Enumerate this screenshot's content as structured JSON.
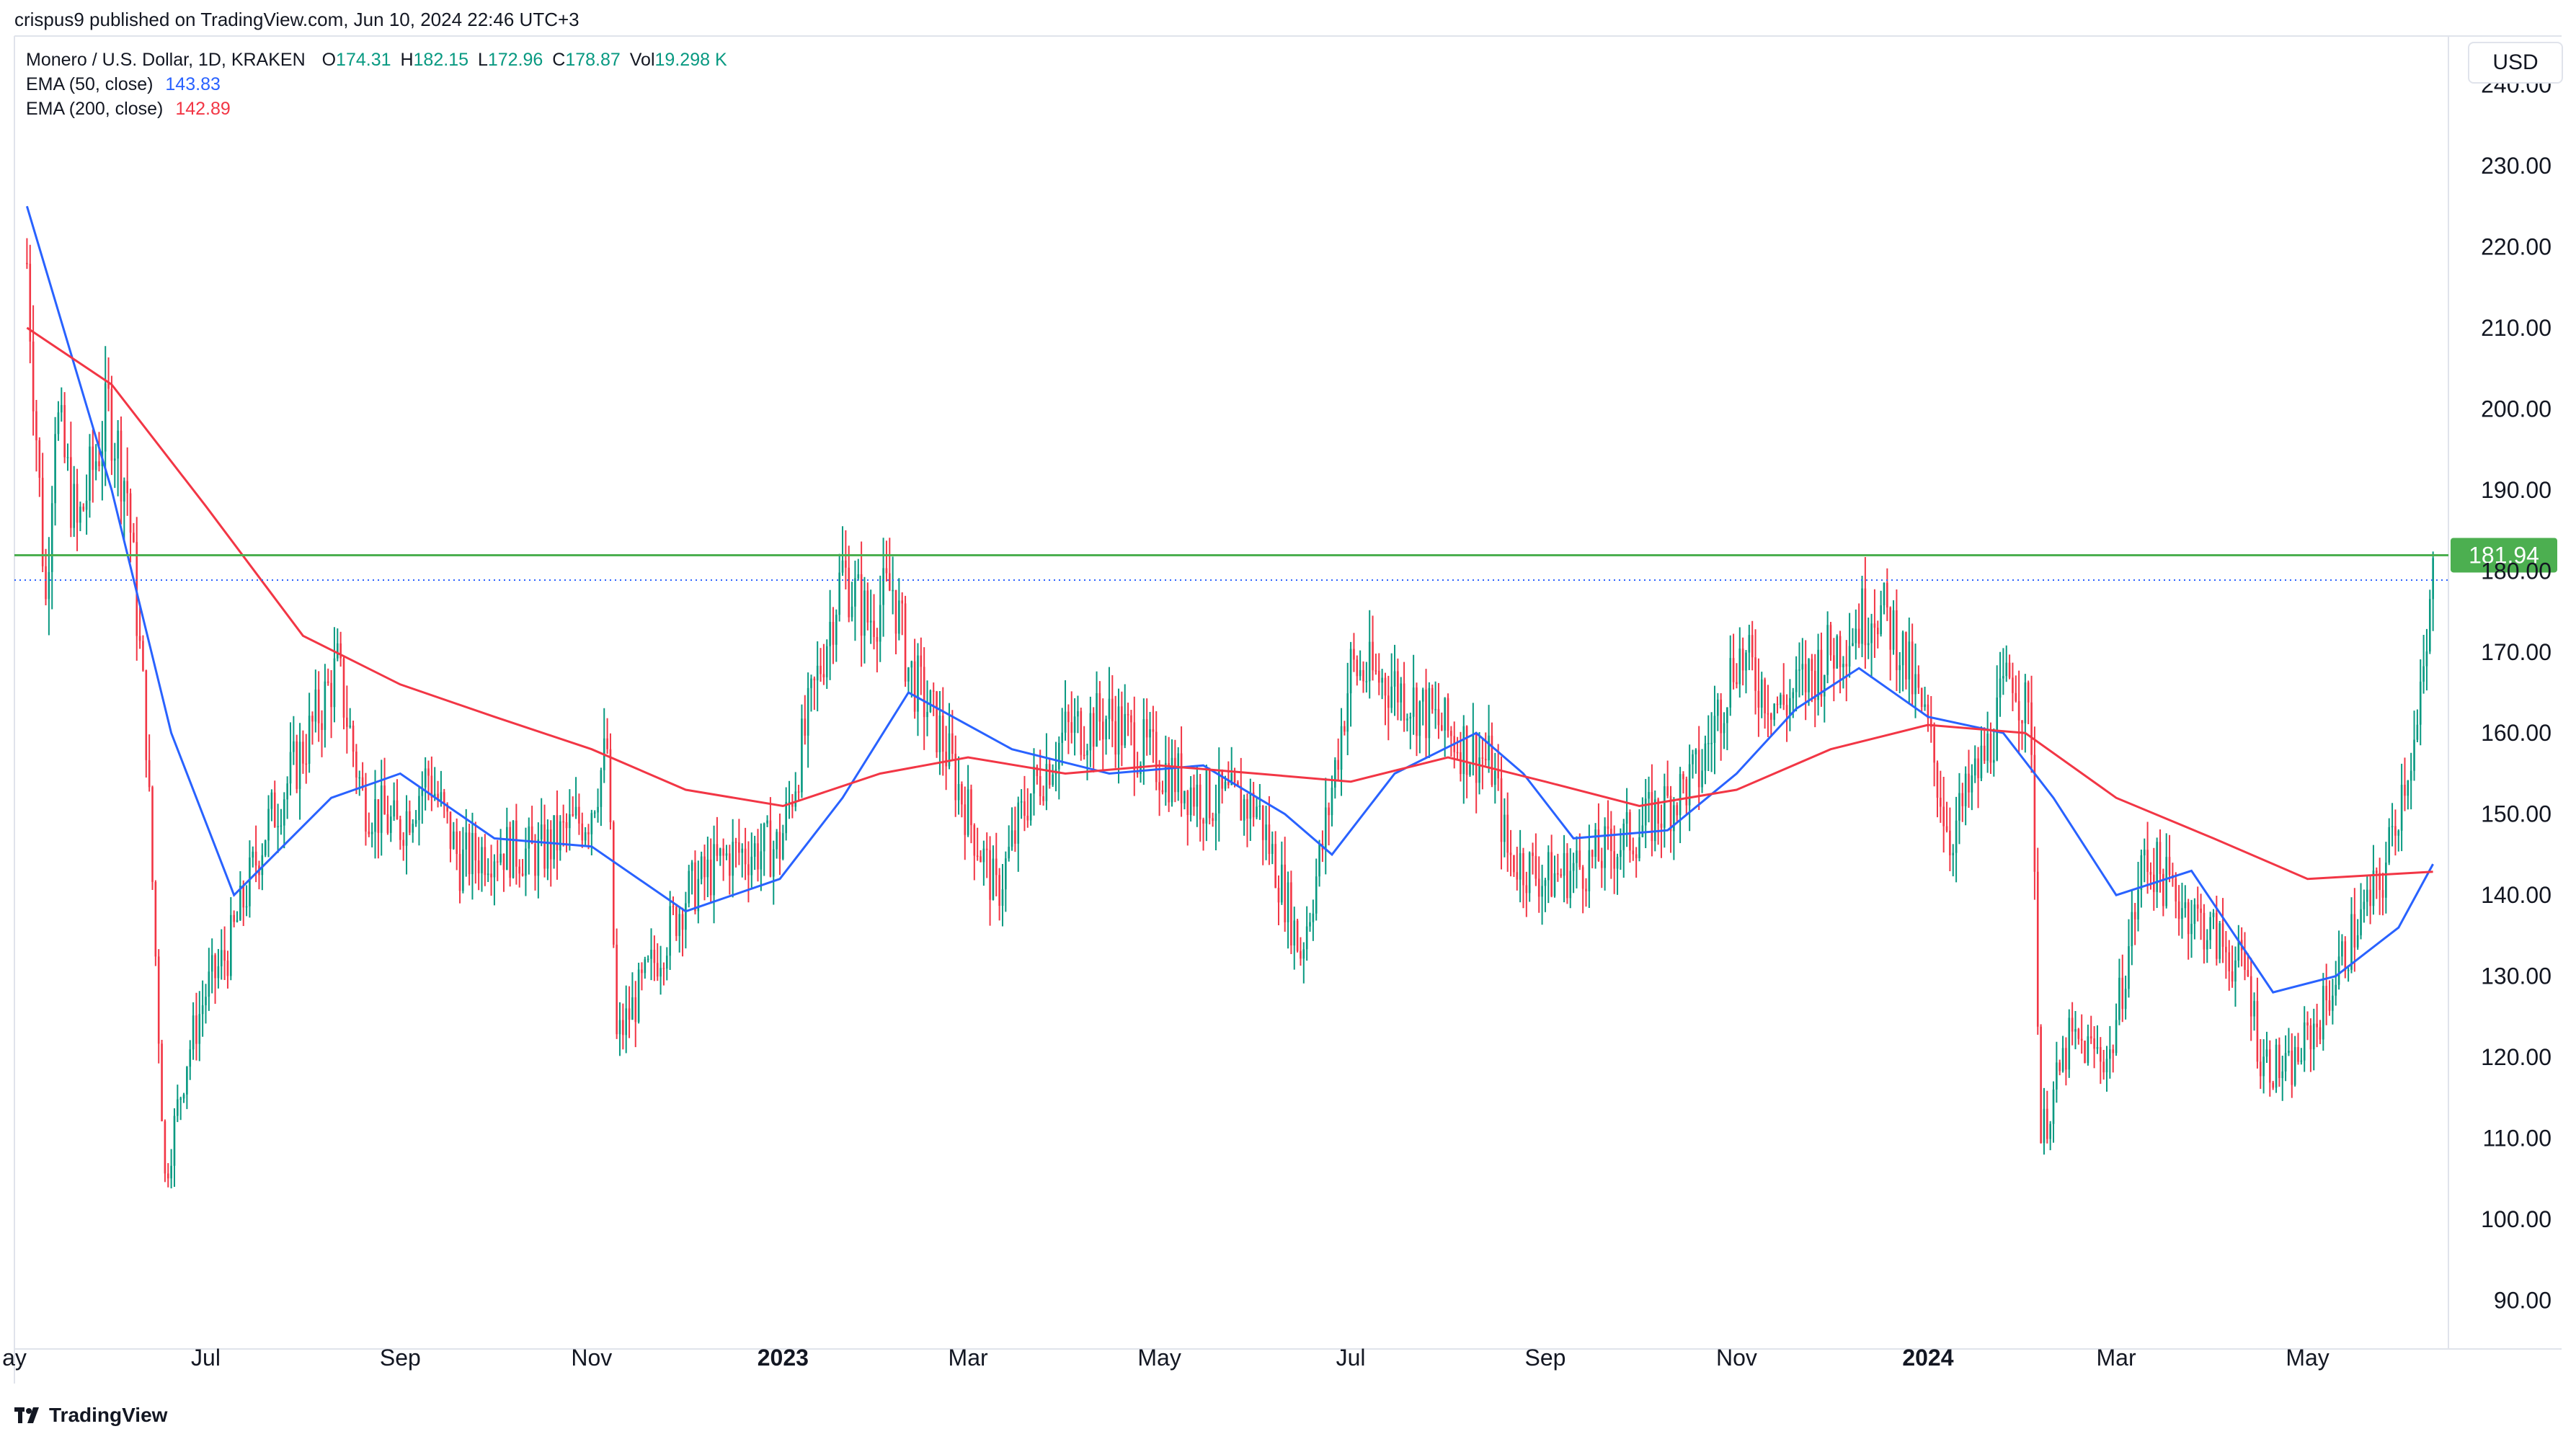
{
  "header": {
    "published_line": "crispus9 published on TradingView.com, Jun 10, 2024 22:46 UTC+3"
  },
  "legend": {
    "symbol": "Monero / U.S. Dollar, 1D, KRAKEN",
    "open_label": "O",
    "open": "174.31",
    "high_label": "H",
    "high": "182.15",
    "low_label": "L",
    "low": "172.96",
    "close_label": "C",
    "close": "178.87",
    "vol_label": "Vol",
    "vol": "19.298 K",
    "ema50_label": "EMA (50, close)",
    "ema50_value": "143.83",
    "ema200_label": "EMA (200, close)",
    "ema200_value": "142.89"
  },
  "currency_button": "USD",
  "footer": {
    "brand": "TradingView"
  },
  "colors": {
    "up": "#089981",
    "down": "#f23645",
    "ema50": "#2962ff",
    "ema200": "#f23645",
    "hline": "#4caf50",
    "dotted": "#2962ff",
    "price_tag_bg": "#4caf50"
  },
  "chart_data": {
    "type": "candlestick",
    "title": "Monero / U.S. Dollar, 1D, KRAKEN",
    "ylim": [
      84,
      246
    ],
    "y_ticks": [
      90,
      100,
      110,
      120,
      130,
      140,
      150,
      160,
      170,
      180,
      190,
      200,
      210,
      220,
      230,
      240
    ],
    "y_tick_labels": [
      "90.00",
      "100.00",
      "110.00",
      "120.00",
      "130.00",
      "140.00",
      "150.00",
      "160.00",
      "170.00",
      "180.00",
      "190.00",
      "200.00",
      "210.00",
      "220.00",
      "230.00",
      "240.00"
    ],
    "x_tick_labels": [
      {
        "label": "ay",
        "month": "2022-05",
        "bold": false
      },
      {
        "label": "Jul",
        "month": "2022-07",
        "bold": false
      },
      {
        "label": "Sep",
        "month": "2022-09",
        "bold": false
      },
      {
        "label": "Nov",
        "month": "2022-11",
        "bold": false
      },
      {
        "label": "2023",
        "month": "2023-01",
        "bold": true
      },
      {
        "label": "Mar",
        "month": "2023-03",
        "bold": false
      },
      {
        "label": "May",
        "month": "2023-05",
        "bold": false
      },
      {
        "label": "Jul",
        "month": "2023-07",
        "bold": false
      },
      {
        "label": "Sep",
        "month": "2023-09",
        "bold": false
      },
      {
        "label": "Nov",
        "month": "2023-11",
        "bold": false
      },
      {
        "label": "2024",
        "month": "2024-01",
        "bold": true
      },
      {
        "label": "Mar",
        "month": "2024-03",
        "bold": false
      },
      {
        "label": "May",
        "month": "2024-05",
        "bold": false
      }
    ],
    "horizontal_line": {
      "value": 181.94,
      "label": "181.94"
    },
    "last_close_line": 178.87,
    "price_anchors": [
      [
        "2022-05-05",
        218
      ],
      [
        "2022-05-11",
        176
      ],
      [
        "2022-05-14",
        200
      ],
      [
        "2022-05-21",
        185
      ],
      [
        "2022-05-31",
        200
      ],
      [
        "2022-06-06",
        190
      ],
      [
        "2022-06-12",
        160
      ],
      [
        "2022-06-18",
        105
      ],
      [
        "2022-06-25",
        120
      ],
      [
        "2022-07-01",
        128
      ],
      [
        "2022-07-08",
        133
      ],
      [
        "2022-07-20",
        148
      ],
      [
        "2022-08-01",
        158
      ],
      [
        "2022-08-12",
        168
      ],
      [
        "2022-08-20",
        152
      ],
      [
        "2022-08-31",
        148
      ],
      [
        "2022-09-10",
        155
      ],
      [
        "2022-09-20",
        144
      ],
      [
        "2022-10-01",
        146
      ],
      [
        "2022-10-15",
        145
      ],
      [
        "2022-10-31",
        150
      ],
      [
        "2022-11-06",
        158
      ],
      [
        "2022-11-09",
        122
      ],
      [
        "2022-11-20",
        131
      ],
      [
        "2022-12-01",
        140
      ],
      [
        "2022-12-15",
        145
      ],
      [
        "2022-12-31",
        146
      ],
      [
        "2023-01-15",
        172
      ],
      [
        "2023-01-20",
        180
      ],
      [
        "2023-01-28",
        174
      ],
      [
        "2023-02-05",
        178
      ],
      [
        "2023-02-10",
        168
      ],
      [
        "2023-02-20",
        160
      ],
      [
        "2023-03-10",
        140
      ],
      [
        "2023-03-20",
        152
      ],
      [
        "2023-04-01",
        160
      ],
      [
        "2023-04-15",
        162
      ],
      [
        "2023-05-01",
        156
      ],
      [
        "2023-05-15",
        152
      ],
      [
        "2023-06-01",
        151
      ],
      [
        "2023-06-10",
        140
      ],
      [
        "2023-06-15",
        133
      ],
      [
        "2023-06-22",
        146
      ],
      [
        "2023-07-01",
        168
      ],
      [
        "2023-07-15",
        166
      ],
      [
        "2023-08-01",
        160
      ],
      [
        "2023-08-15",
        156
      ],
      [
        "2023-08-20",
        145
      ],
      [
        "2023-09-01",
        142
      ],
      [
        "2023-09-15",
        144
      ],
      [
        "2023-10-01",
        148
      ],
      [
        "2023-10-20",
        155
      ],
      [
        "2023-11-01",
        170
      ],
      [
        "2023-11-15",
        163
      ],
      [
        "2023-12-01",
        170
      ],
      [
        "2023-12-15",
        176
      ],
      [
        "2023-12-22",
        172
      ],
      [
        "2024-01-01",
        160
      ],
      [
        "2024-01-08",
        147
      ],
      [
        "2024-01-20",
        158
      ],
      [
        "2024-01-28",
        168
      ],
      [
        "2024-02-03",
        160
      ],
      [
        "2024-02-06",
        110
      ],
      [
        "2024-02-15",
        122
      ],
      [
        "2024-02-28",
        120
      ],
      [
        "2024-03-10",
        145
      ],
      [
        "2024-03-20",
        140
      ],
      [
        "2024-04-01",
        135
      ],
      [
        "2024-04-12",
        130
      ],
      [
        "2024-04-16",
        120
      ],
      [
        "2024-04-25",
        118
      ],
      [
        "2024-05-05",
        125
      ],
      [
        "2024-05-15",
        135
      ],
      [
        "2024-05-25",
        142
      ],
      [
        "2024-06-01",
        155
      ],
      [
        "2024-06-05",
        160
      ],
      [
        "2024-06-08",
        170
      ],
      [
        "2024-06-10",
        178.87
      ]
    ],
    "series": [
      {
        "name": "EMA (50, close)",
        "last": 143.83,
        "points": [
          [
            "2022-05-05",
            225
          ],
          [
            "2022-06-01",
            190
          ],
          [
            "2022-06-20",
            160
          ],
          [
            "2022-07-10",
            140
          ],
          [
            "2022-08-10",
            152
          ],
          [
            "2022-09-01",
            155
          ],
          [
            "2022-10-01",
            147
          ],
          [
            "2022-11-01",
            146
          ],
          [
            "2022-12-01",
            138
          ],
          [
            "2022-12-31",
            142
          ],
          [
            "2023-01-20",
            152
          ],
          [
            "2023-02-10",
            165
          ],
          [
            "2023-03-15",
            158
          ],
          [
            "2023-04-15",
            155
          ],
          [
            "2023-05-15",
            156
          ],
          [
            "2023-06-10",
            150
          ],
          [
            "2023-06-25",
            145
          ],
          [
            "2023-07-15",
            155
          ],
          [
            "2023-08-10",
            160
          ],
          [
            "2023-08-25",
            155
          ],
          [
            "2023-09-10",
            147
          ],
          [
            "2023-10-10",
            148
          ],
          [
            "2023-11-01",
            155
          ],
          [
            "2023-11-20",
            163
          ],
          [
            "2023-12-10",
            168
          ],
          [
            "2024-01-01",
            162
          ],
          [
            "2024-01-25",
            160
          ],
          [
            "2024-02-10",
            152
          ],
          [
            "2024-03-01",
            140
          ],
          [
            "2024-03-25",
            143
          ],
          [
            "2024-04-20",
            128
          ],
          [
            "2024-05-10",
            130
          ],
          [
            "2024-05-30",
            136
          ],
          [
            "2024-06-10",
            143.83
          ]
        ]
      },
      {
        "name": "EMA (200, close)",
        "last": 142.89,
        "points": [
          [
            "2022-05-05",
            210
          ],
          [
            "2022-06-01",
            203
          ],
          [
            "2022-07-01",
            188
          ],
          [
            "2022-08-01",
            172
          ],
          [
            "2022-09-01",
            166
          ],
          [
            "2022-10-01",
            162
          ],
          [
            "2022-11-01",
            158
          ],
          [
            "2022-12-01",
            153
          ],
          [
            "2023-01-01",
            151
          ],
          [
            "2023-02-01",
            155
          ],
          [
            "2023-03-01",
            157
          ],
          [
            "2023-04-01",
            155
          ],
          [
            "2023-05-01",
            156
          ],
          [
            "2023-06-01",
            155
          ],
          [
            "2023-07-01",
            154
          ],
          [
            "2023-08-01",
            157
          ],
          [
            "2023-09-01",
            154
          ],
          [
            "2023-10-01",
            151
          ],
          [
            "2023-11-01",
            153
          ],
          [
            "2023-12-01",
            158
          ],
          [
            "2024-01-01",
            161
          ],
          [
            "2024-02-01",
            160
          ],
          [
            "2024-03-01",
            152
          ],
          [
            "2024-04-01",
            147
          ],
          [
            "2024-05-01",
            142
          ],
          [
            "2024-06-10",
            142.89
          ]
        ]
      }
    ]
  }
}
